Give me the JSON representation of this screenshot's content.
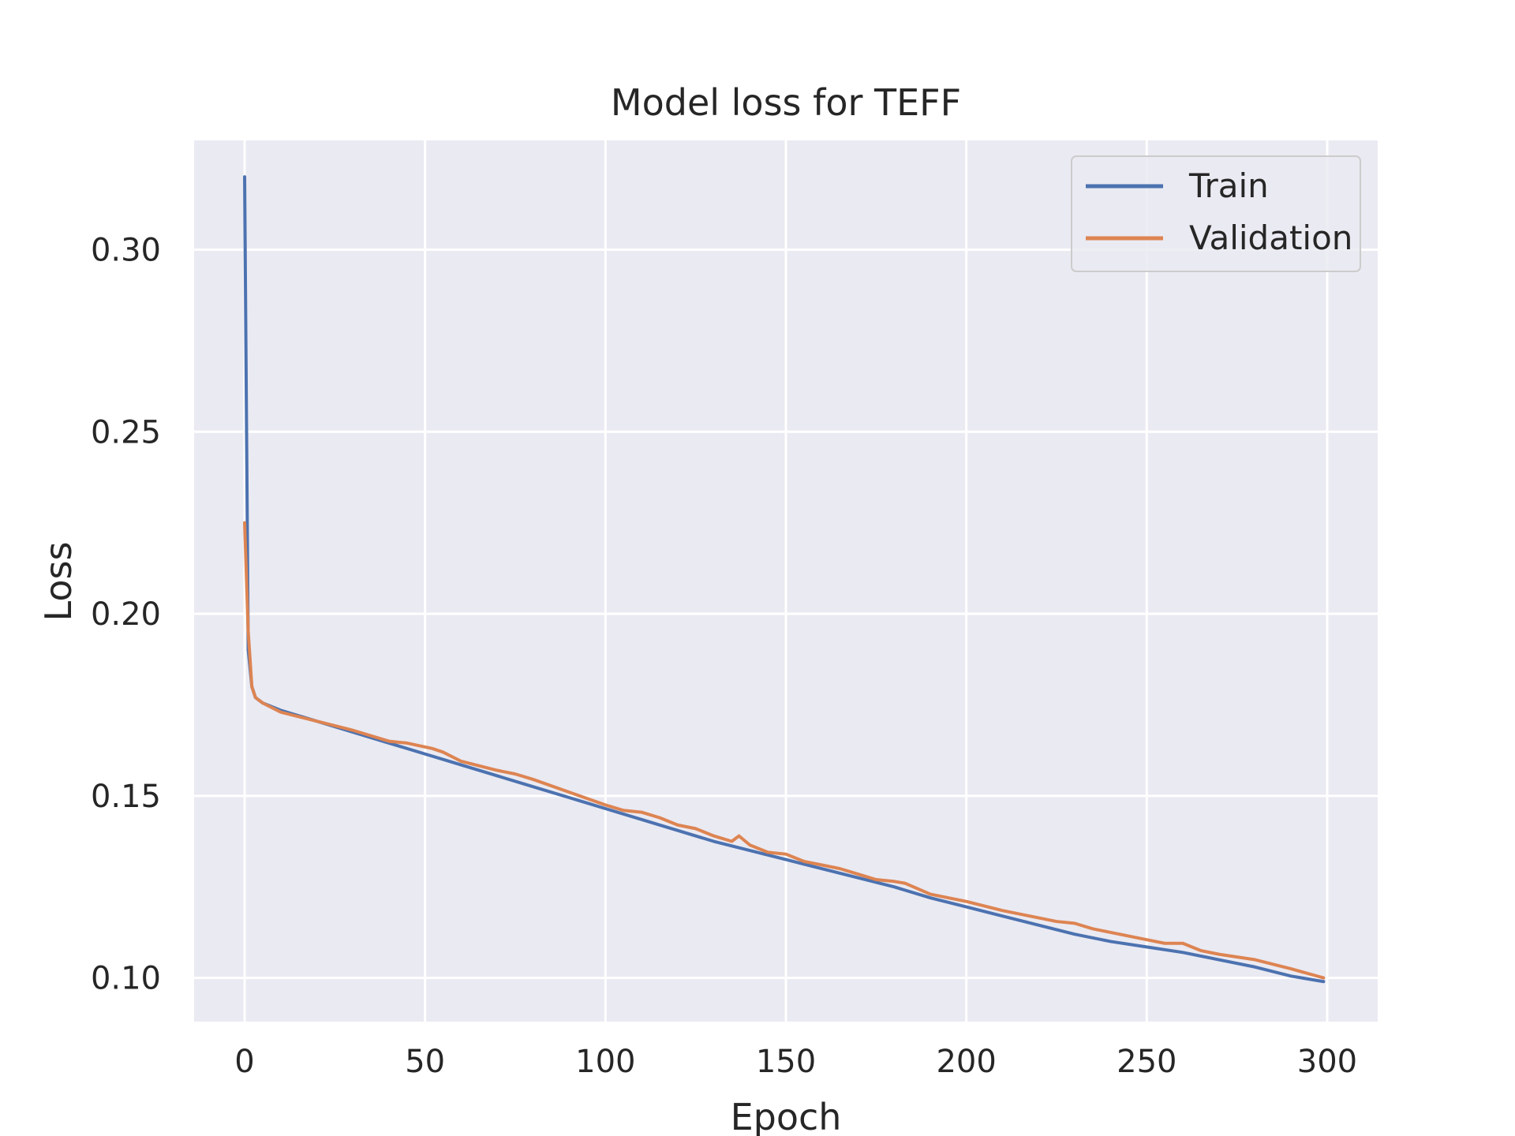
{
  "chart_data": {
    "type": "line",
    "title": "Model loss for TEFF",
    "xlabel": "Epoch",
    "ylabel": "Loss",
    "xlim": [
      -14,
      314
    ],
    "ylim": [
      0.088,
      0.33
    ],
    "xticks": [
      0,
      50,
      100,
      150,
      200,
      250,
      300
    ],
    "xtick_labels": [
      "0",
      "50",
      "100",
      "150",
      "200",
      "250",
      "300"
    ],
    "yticks": [
      0.1,
      0.15,
      0.2,
      0.25,
      0.3
    ],
    "ytick_labels": [
      "0.10",
      "0.15",
      "0.20",
      "0.25",
      "0.30"
    ],
    "grid": true,
    "legend_position": "top-right",
    "background": "#eaeaf2",
    "series": [
      {
        "name": "Train",
        "color": "#4c72b0",
        "points": [
          [
            0,
            0.32
          ],
          [
            1,
            0.19
          ],
          [
            2,
            0.18
          ],
          [
            3,
            0.177
          ],
          [
            5,
            0.1755
          ],
          [
            10,
            0.1735
          ],
          [
            20,
            0.1705
          ],
          [
            30,
            0.1675
          ],
          [
            40,
            0.1645
          ],
          [
            50,
            0.1615
          ],
          [
            60,
            0.1585
          ],
          [
            70,
            0.1555
          ],
          [
            80,
            0.1525
          ],
          [
            90,
            0.1495
          ],
          [
            100,
            0.1465
          ],
          [
            110,
            0.1435
          ],
          [
            120,
            0.1405
          ],
          [
            130,
            0.1375
          ],
          [
            140,
            0.135
          ],
          [
            150,
            0.1325
          ],
          [
            160,
            0.13
          ],
          [
            170,
            0.1275
          ],
          [
            180,
            0.125
          ],
          [
            190,
            0.122
          ],
          [
            200,
            0.1195
          ],
          [
            210,
            0.117
          ],
          [
            220,
            0.1145
          ],
          [
            230,
            0.112
          ],
          [
            240,
            0.11
          ],
          [
            250,
            0.1085
          ],
          [
            260,
            0.107
          ],
          [
            270,
            0.105
          ],
          [
            280,
            0.103
          ],
          [
            290,
            0.1005
          ],
          [
            299,
            0.099
          ]
        ]
      },
      {
        "name": "Validation",
        "color": "#dd8452",
        "points": [
          [
            0,
            0.225
          ],
          [
            1,
            0.195
          ],
          [
            2,
            0.18
          ],
          [
            3,
            0.177
          ],
          [
            5,
            0.1755
          ],
          [
            10,
            0.173
          ],
          [
            20,
            0.1705
          ],
          [
            30,
            0.168
          ],
          [
            40,
            0.165
          ],
          [
            45,
            0.1645
          ],
          [
            52,
            0.163
          ],
          [
            55,
            0.162
          ],
          [
            60,
            0.1595
          ],
          [
            70,
            0.157
          ],
          [
            75,
            0.156
          ],
          [
            80,
            0.1545
          ],
          [
            90,
            0.151
          ],
          [
            100,
            0.1475
          ],
          [
            105,
            0.146
          ],
          [
            110,
            0.1455
          ],
          [
            115,
            0.144
          ],
          [
            120,
            0.142
          ],
          [
            125,
            0.141
          ],
          [
            130,
            0.139
          ],
          [
            135,
            0.1375
          ],
          [
            137,
            0.139
          ],
          [
            140,
            0.1365
          ],
          [
            145,
            0.1345
          ],
          [
            150,
            0.134
          ],
          [
            155,
            0.132
          ],
          [
            160,
            0.131
          ],
          [
            165,
            0.13
          ],
          [
            170,
            0.1285
          ],
          [
            175,
            0.127
          ],
          [
            180,
            0.1265
          ],
          [
            183,
            0.126
          ],
          [
            190,
            0.123
          ],
          [
            200,
            0.121
          ],
          [
            210,
            0.1185
          ],
          [
            220,
            0.1165
          ],
          [
            225,
            0.1155
          ],
          [
            230,
            0.115
          ],
          [
            235,
            0.1135
          ],
          [
            240,
            0.1125
          ],
          [
            245,
            0.1115
          ],
          [
            250,
            0.1105
          ],
          [
            255,
            0.1095
          ],
          [
            260,
            0.1095
          ],
          [
            265,
            0.1075
          ],
          [
            270,
            0.1065
          ],
          [
            280,
            0.105
          ],
          [
            290,
            0.1025
          ],
          [
            299,
            0.1
          ]
        ]
      }
    ]
  }
}
